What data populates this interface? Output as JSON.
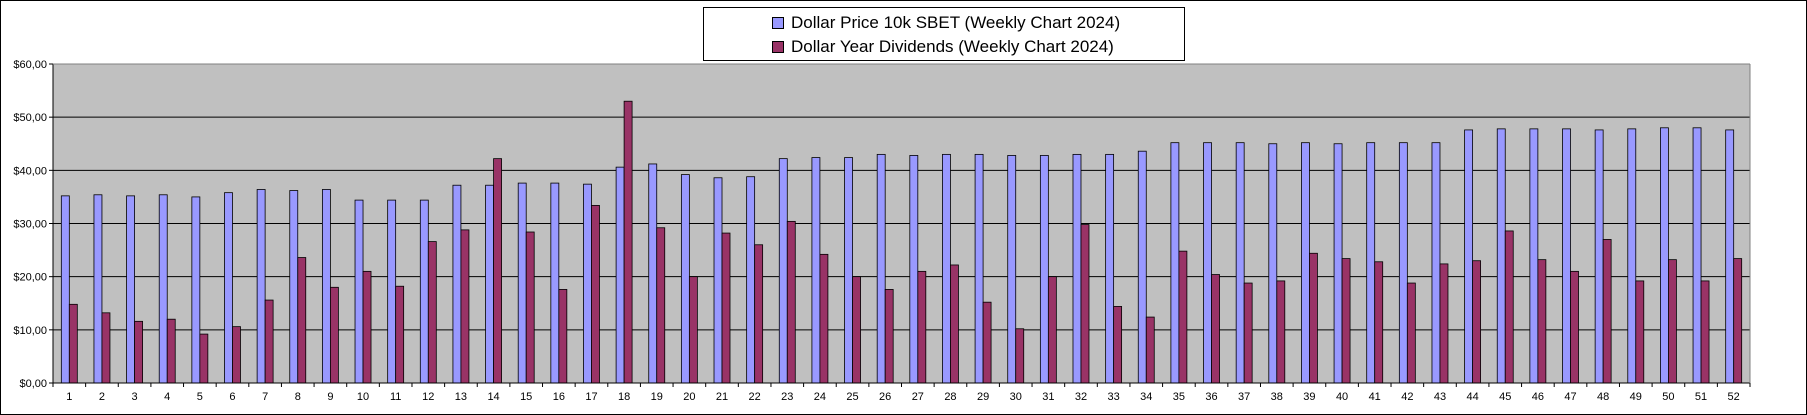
{
  "chart_data": {
    "type": "bar",
    "title": "",
    "xlabel": "",
    "ylabel": "",
    "ylim": [
      0,
      60
    ],
    "y_tick_values": [
      0,
      10,
      20,
      30,
      40,
      50,
      60
    ],
    "y_tick_labels": [
      "$0,00",
      "$10,00",
      "$20,00",
      "$30,00",
      "$40,00",
      "$50,00",
      "$60,00"
    ],
    "grid": true,
    "legend_position": "top-center",
    "plot_background": "#c0c0c0",
    "categories": [
      "1",
      "2",
      "3",
      "4",
      "5",
      "6",
      "7",
      "8",
      "9",
      "10",
      "11",
      "12",
      "13",
      "14",
      "15",
      "16",
      "17",
      "18",
      "19",
      "20",
      "21",
      "22",
      "23",
      "24",
      "25",
      "26",
      "27",
      "28",
      "29",
      "30",
      "31",
      "32",
      "33",
      "34",
      "35",
      "36",
      "37",
      "38",
      "39",
      "40",
      "41",
      "42",
      "43",
      "44",
      "45",
      "46",
      "47",
      "48",
      "49",
      "50",
      "51",
      "52"
    ],
    "series": [
      {
        "name": "Dollar Price 10k SBET (Weekly Chart 2024)",
        "color": "#9999ff",
        "values": [
          35.2,
          35.4,
          35.2,
          35.4,
          35.0,
          35.8,
          36.4,
          36.2,
          36.4,
          34.4,
          34.4,
          34.4,
          37.2,
          37.2,
          37.6,
          37.6,
          37.4,
          40.6,
          41.2,
          39.2,
          38.6,
          38.8,
          42.2,
          42.4,
          42.4,
          43.0,
          42.8,
          43.0,
          43.0,
          42.8,
          42.8,
          43.0,
          43.0,
          43.6,
          45.2,
          45.2,
          45.2,
          45.0,
          45.2,
          45.0,
          45.2,
          45.2,
          45.2,
          47.6,
          47.8,
          47.8,
          47.8,
          47.6,
          47.8,
          48.0,
          48.0,
          47.6
        ]
      },
      {
        "name": "Dollar Year Dividends (Weekly Chart 2024)",
        "color": "#993366",
        "values": [
          14.8,
          13.2,
          11.6,
          12.0,
          9.2,
          10.6,
          15.6,
          23.6,
          18.0,
          21.0,
          18.2,
          26.6,
          28.8,
          42.2,
          28.4,
          17.6,
          33.4,
          53.0,
          29.2,
          20.0,
          28.2,
          26.0,
          30.4,
          24.2,
          20.0,
          17.6,
          21.0,
          22.2,
          15.2,
          10.2,
          20.0,
          29.8,
          14.4,
          12.4,
          24.8,
          20.4,
          18.8,
          19.2,
          24.4,
          23.4,
          22.8,
          18.8,
          22.4,
          23.0,
          28.6,
          23.2,
          21.0,
          27.0,
          19.2,
          23.2,
          19.2,
          23.4
        ]
      }
    ]
  }
}
